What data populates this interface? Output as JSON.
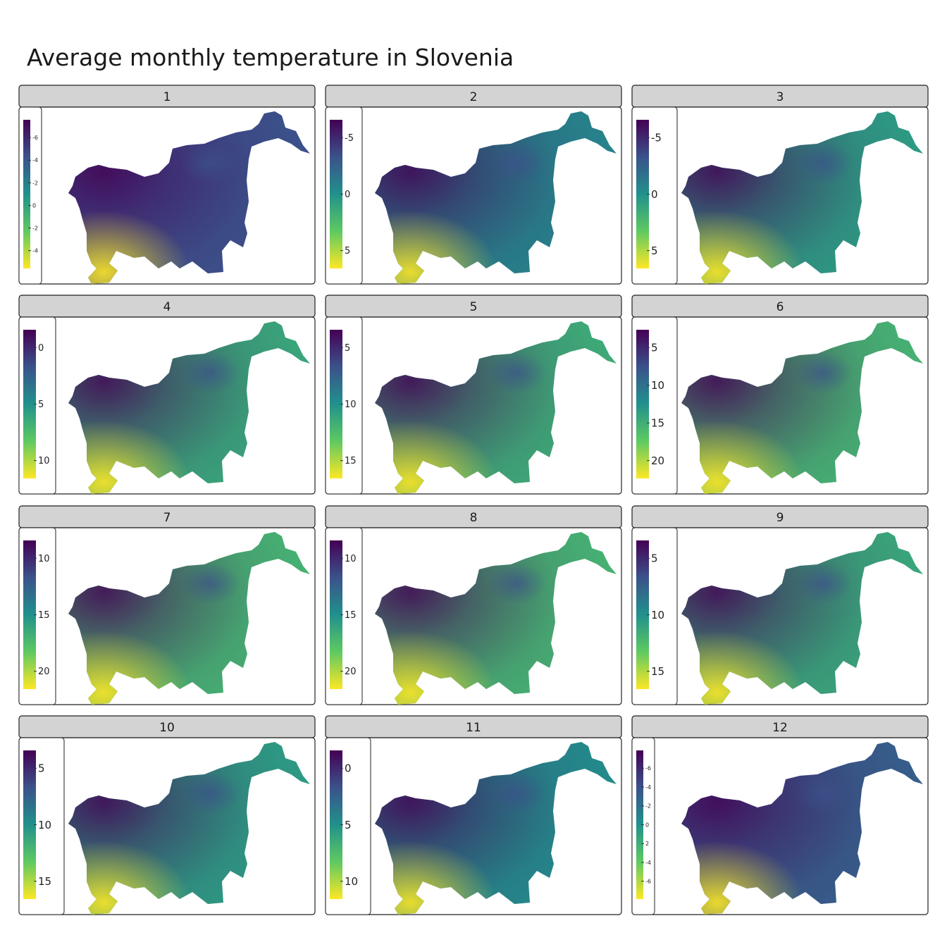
{
  "chart_data": {
    "type": "heatmap",
    "title": "Average monthly temperature in Slovenia",
    "colormap": "viridis (reversed: dark purple = high legend value, yellow = low legend value)",
    "colors": [
      "#440154",
      "#3b528b",
      "#21918c",
      "#5ec962",
      "#fde725"
    ],
    "panel_strip_color": "#d3d3d3",
    "legend_placement": "left, inside each panel",
    "panels": [
      {
        "label": "1",
        "legend_ticks": [
          "-6",
          "-4",
          "-2",
          "0",
          "-2",
          "-4"
        ],
        "legend_text_size": "small"
      },
      {
        "label": "2",
        "legend_ticks": [
          "-5",
          "0",
          "5"
        ],
        "legend_text_size": "medium"
      },
      {
        "label": "3",
        "legend_ticks": [
          "-5",
          "0",
          "5"
        ],
        "legend_text_size": "large"
      },
      {
        "label": "4",
        "legend_ticks": [
          "0",
          "5",
          "10"
        ],
        "legend_text_size": "medium"
      },
      {
        "label": "5",
        "legend_ticks": [
          "5",
          "10",
          "15"
        ],
        "legend_text_size": "medium"
      },
      {
        "label": "6",
        "legend_ticks": [
          "5",
          "10",
          "15",
          "20"
        ],
        "legend_text_size": "large"
      },
      {
        "label": "7",
        "legend_ticks": [
          "10",
          "15",
          "20"
        ],
        "legend_text_size": "medium"
      },
      {
        "label": "8",
        "legend_ticks": [
          "10",
          "15",
          "20"
        ],
        "legend_text_size": "medium"
      },
      {
        "label": "9",
        "legend_ticks": [
          "5",
          "10",
          "15"
        ],
        "legend_text_size": "large"
      },
      {
        "label": "10",
        "legend_ticks": [
          "5",
          "10",
          "15"
        ],
        "legend_text_size": "large"
      },
      {
        "label": "11",
        "legend_ticks": [
          "0",
          "5",
          "10"
        ],
        "legend_text_size": "large"
      },
      {
        "label": "12",
        "legend_ticks": [
          "-6",
          "-4",
          "-2",
          "0",
          "2",
          "-4",
          "-6"
        ],
        "legend_text_size": "small"
      }
    ]
  }
}
